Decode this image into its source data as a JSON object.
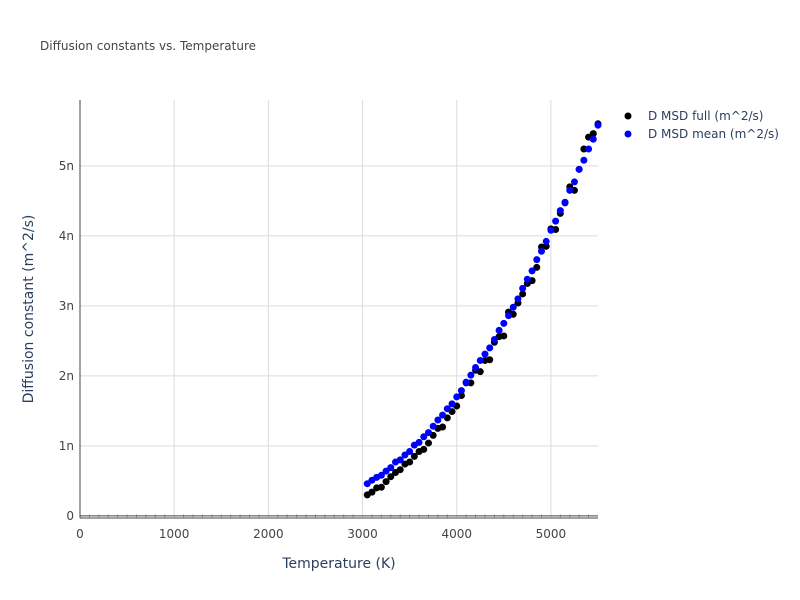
{
  "chart_data": {
    "type": "scatter",
    "title": "Diffusion constants vs. Temperature",
    "xlabel": "Temperature (K)",
    "ylabel": "Diffusion constant (m^2/s)",
    "xlim": [
      0,
      5500
    ],
    "ylim": [
      -3e-11,
      5.94e-09
    ],
    "x_ticks": [
      0,
      1000,
      2000,
      3000,
      4000,
      5000
    ],
    "x_tick_labels": [
      "0",
      "1000",
      "2000",
      "3000",
      "4000",
      "5000"
    ],
    "y_ticks": [
      0,
      1e-09,
      2e-09,
      3e-09,
      4e-09,
      5e-09
    ],
    "y_tick_labels": [
      "0",
      "1n",
      "2n",
      "3n",
      "4n",
      "5n"
    ],
    "grid": true,
    "legend_position": "top-right",
    "x": [
      3050,
      3100,
      3150,
      3200,
      3250,
      3300,
      3350,
      3400,
      3450,
      3500,
      3550,
      3600,
      3650,
      3700,
      3750,
      3800,
      3850,
      3900,
      3950,
      4000,
      4050,
      4100,
      4150,
      4200,
      4250,
      4300,
      4350,
      4400,
      4450,
      4500,
      4550,
      4600,
      4650,
      4700,
      4750,
      4800,
      4850,
      4900,
      4950,
      5000,
      5050,
      5100,
      5150,
      5200,
      5250,
      5300,
      5350,
      5400,
      5450,
      5500
    ],
    "series": [
      {
        "name": "D MSD full (m^2/s)",
        "color": "#000000",
        "values": [
          3e-10,
          3.4e-10,
          4e-10,
          4.1e-10,
          4.9e-10,
          5.6e-10,
          6.2e-10,
          6.6e-10,
          7.4e-10,
          7.7e-10,
          8.5e-10,
          9.2e-10,
          9.5e-10,
          1.04e-09,
          1.15e-09,
          1.25e-09,
          1.27e-09,
          1.4e-09,
          1.49e-09,
          1.57e-09,
          1.72e-09,
          1.9e-09,
          1.9e-09,
          2.08e-09,
          2.06e-09,
          2.22e-09,
          2.23e-09,
          2.48e-09,
          2.56e-09,
          2.57e-09,
          2.91e-09,
          2.88e-09,
          3.04e-09,
          3.17e-09,
          3.32e-09,
          3.36e-09,
          3.55e-09,
          3.84e-09,
          3.85e-09,
          4.1e-09,
          4.09e-09,
          4.32e-09,
          4.47e-09,
          4.7e-09,
          4.65e-09,
          4.95e-09,
          5.24e-09,
          5.41e-09,
          5.46e-09,
          5.6e-09
        ]
      },
      {
        "name": "D MSD mean (m^2/s)",
        "color": "#0000ff",
        "values": [
          4.6e-10,
          5.1e-10,
          5.5e-10,
          5.8e-10,
          6.4e-10,
          6.9e-10,
          7.7e-10,
          8e-10,
          8.7e-10,
          9.2e-10,
          1.01e-09,
          1.05e-09,
          1.13e-09,
          1.19e-09,
          1.28e-09,
          1.37e-09,
          1.44e-09,
          1.53e-09,
          1.6e-09,
          1.7e-09,
          1.79e-09,
          1.91e-09,
          2.01e-09,
          2.12e-09,
          2.22e-09,
          2.31e-09,
          2.4e-09,
          2.52e-09,
          2.65e-09,
          2.75e-09,
          2.86e-09,
          2.98e-09,
          3.1e-09,
          3.25e-09,
          3.38e-09,
          3.5e-09,
          3.66e-09,
          3.78e-09,
          3.92e-09,
          4.08e-09,
          4.21e-09,
          4.36e-09,
          4.48e-09,
          4.65e-09,
          4.77e-09,
          4.95e-09,
          5.08e-09,
          5.24e-09,
          5.38e-09,
          5.58e-09
        ]
      }
    ]
  }
}
